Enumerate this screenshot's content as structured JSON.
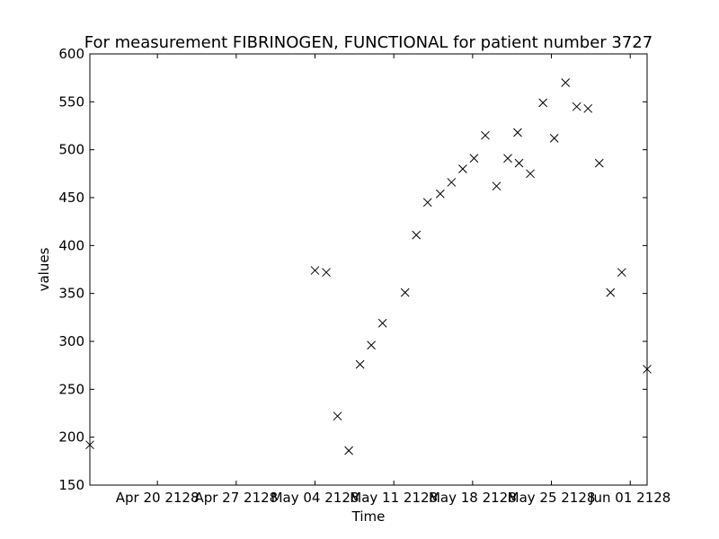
{
  "chart_data": {
    "type": "scatter",
    "title": "For measurement FIBRINOGEN, FUNCTIONAL for patient number 3727",
    "xlabel": "Time",
    "ylabel": "values",
    "marker": "x",
    "marker_color": "#000000",
    "xlim": [
      "2128-04-14",
      "2128-06-02 12:00"
    ],
    "ylim": [
      150,
      600
    ],
    "x_ticks": [
      {
        "value": "2128-04-20",
        "label": "Apr 20 2128"
      },
      {
        "value": "2128-04-27",
        "label": "Apr 27 2128"
      },
      {
        "value": "2128-05-04",
        "label": "May 04 2128"
      },
      {
        "value": "2128-05-11",
        "label": "May 11 2128"
      },
      {
        "value": "2128-05-18",
        "label": "May 18 2128"
      },
      {
        "value": "2128-05-25",
        "label": "May 25 2128"
      },
      {
        "value": "2128-06-01",
        "label": "Jun 01 2128"
      }
    ],
    "y_ticks": [
      150,
      200,
      250,
      300,
      350,
      400,
      450,
      500,
      550,
      600
    ],
    "points": [
      {
        "x": "2128-04-14 00:00",
        "y": 192
      },
      {
        "x": "2128-05-04 00:00",
        "y": 374
      },
      {
        "x": "2128-05-05 00:00",
        "y": 372
      },
      {
        "x": "2128-05-06 00:00",
        "y": 222
      },
      {
        "x": "2128-05-07 00:00",
        "y": 186
      },
      {
        "x": "2128-05-08 00:00",
        "y": 276
      },
      {
        "x": "2128-05-09 00:00",
        "y": 296
      },
      {
        "x": "2128-05-10 00:00",
        "y": 319
      },
      {
        "x": "2128-05-12 00:00",
        "y": 351
      },
      {
        "x": "2128-05-13 00:00",
        "y": 411
      },
      {
        "x": "2128-05-14 00:00",
        "y": 445
      },
      {
        "x": "2128-05-15 03:00",
        "y": 454
      },
      {
        "x": "2128-05-16 03:00",
        "y": 466
      },
      {
        "x": "2128-05-17 03:00",
        "y": 480
      },
      {
        "x": "2128-05-18 03:00",
        "y": 491
      },
      {
        "x": "2128-05-19 03:00",
        "y": 515
      },
      {
        "x": "2128-05-20 03:00",
        "y": 462
      },
      {
        "x": "2128-05-21 03:00",
        "y": 491
      },
      {
        "x": "2128-05-22 00:00",
        "y": 518
      },
      {
        "x": "2128-05-22 03:00",
        "y": 486
      },
      {
        "x": "2128-05-23 03:00",
        "y": 475
      },
      {
        "x": "2128-05-24 06:00",
        "y": 549
      },
      {
        "x": "2128-05-25 06:00",
        "y": 512
      },
      {
        "x": "2128-05-26 06:00",
        "y": 570
      },
      {
        "x": "2128-05-27 06:00",
        "y": 545
      },
      {
        "x": "2128-05-28 06:00",
        "y": 543
      },
      {
        "x": "2128-05-29 06:00",
        "y": 486
      },
      {
        "x": "2128-05-30 06:00",
        "y": 351
      },
      {
        "x": "2128-05-31 06:00",
        "y": 372
      },
      {
        "x": "2128-06-02 12:00",
        "y": 271
      }
    ]
  }
}
